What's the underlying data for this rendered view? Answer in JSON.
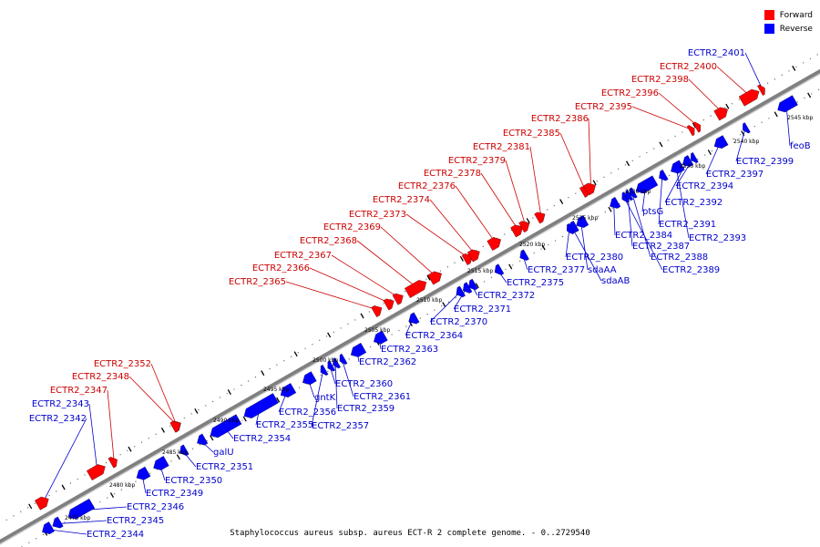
{
  "legend": {
    "forward_label": "Forward",
    "reverse_label": "Reverse",
    "forward_color": "#ff0000",
    "reverse_color": "#0000ff"
  },
  "caption": "Staphylococcus aureus subsp. aureus ECT-R 2 complete genome. - 0..2729540",
  "colors": {
    "forward_label": "#cc0000",
    "reverse_label": "#0000cc",
    "backbone": "#808080"
  },
  "ticks": [
    "2475 kbp",
    "2480 kbp",
    "2485 kbp",
    "2490 kbp",
    "2495 kbp",
    "2500 kbp",
    "2505 kbp",
    "2510 kbp",
    "2515 kbp",
    "2520 kbp",
    "2525 kbp",
    "2530 kbp",
    "2535 kbp",
    "2540 kbp",
    "2545 kbp"
  ],
  "forward_genes": [
    "ECTR2_2342",
    "ECTR2_2343",
    "ECTR2_2347",
    "ECTR2_2348",
    "ECTR2_2352",
    "ECTR2_2365",
    "ECTR2_2366",
    "ECTR2_2367",
    "ECTR2_2368",
    "ECTR2_2369",
    "ECTR2_2373",
    "ECTR2_2374",
    "ECTR2_2376",
    "ECTR2_2378",
    "ECTR2_2379",
    "ECTR2_2381",
    "ECTR2_2385",
    "ECTR2_2386",
    "ECTR2_2395",
    "ECTR2_2396",
    "ECTR2_2398",
    "ECTR2_2400",
    "ECTR2_2401"
  ],
  "reverse_genes": [
    "ECTR2_2344",
    "ECTR2_2345",
    "ECTR2_2346",
    "ECTR2_2349",
    "ECTR2_2350",
    "ECTR2_2351",
    "galU",
    "ECTR2_2354",
    "ECTR2_2355",
    "ECTR2_2356",
    "gntK",
    "ECTR2_2357",
    "ECTR2_2359",
    "ECTR2_2361",
    "ECTR2_2360",
    "ECTR2_2362",
    "ECTR2_2363",
    "ECTR2_2364",
    "ECTR2_2370",
    "ECTR2_2371",
    "ECTR2_2372",
    "ECTR2_2375",
    "ECTR2_2377",
    "sdaAB",
    "sdaAA",
    "ECTR2_2380",
    "ECTR2_2389",
    "ECTR2_2388",
    "ECTR2_2387",
    "ECTR2_2384",
    "ptsG",
    "ECTR2_2393",
    "ECTR2_2391",
    "ECTR2_2392",
    "ECTR2_2394",
    "ECTR2_2397",
    "ECTR2_2399",
    "feoB"
  ]
}
